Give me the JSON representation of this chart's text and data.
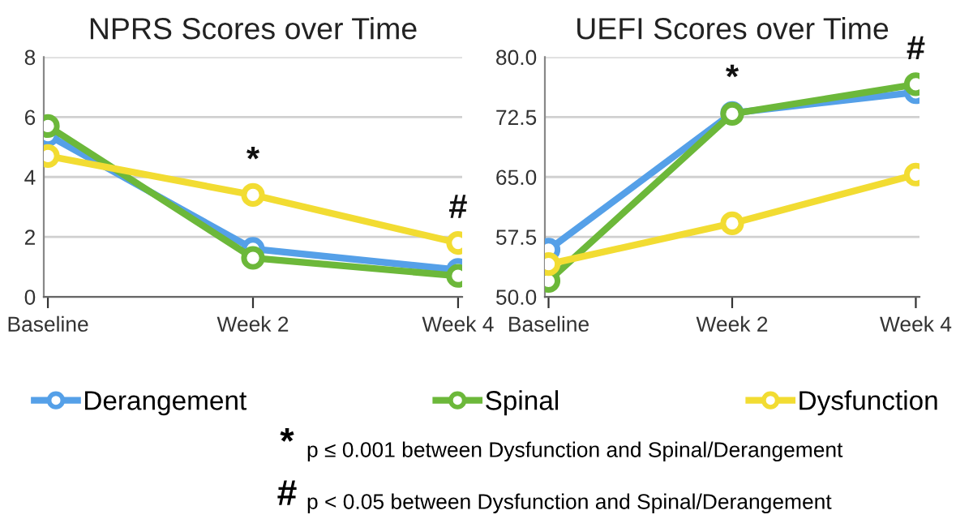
{
  "chart_data": [
    {
      "type": "line",
      "title": "NPRS Scores over Time",
      "categories": [
        "Baseline",
        "Week 2",
        "Week 4"
      ],
      "series": [
        {
          "name": "Derangement",
          "color": "#55a0e8",
          "values": [
            5.4,
            1.6,
            0.9
          ]
        },
        {
          "name": "Spinal",
          "color": "#6cb83a",
          "values": [
            5.7,
            1.3,
            0.7
          ]
        },
        {
          "name": "Dysfunction",
          "color": "#f2dc32",
          "values": [
            4.7,
            3.4,
            1.8
          ]
        }
      ],
      "ylim": [
        0,
        8
      ],
      "yticks": [
        0,
        2,
        4,
        6,
        8
      ],
      "grid": "y",
      "marker": "circle",
      "line_style": "solid",
      "legend": "bottom",
      "annotations": [
        "*",
        "#"
      ]
    },
    {
      "type": "line",
      "title": "UEFI Scores over Time",
      "categories": [
        "Baseline",
        "Week 2",
        "Week 4"
      ],
      "series": [
        {
          "name": "Derangement",
          "color": "#55a0e8",
          "values": [
            55.9,
            73.0,
            75.6
          ]
        },
        {
          "name": "Spinal",
          "color": "#6cb83a",
          "values": [
            52.0,
            72.9,
            76.6
          ]
        },
        {
          "name": "Dysfunction",
          "color": "#f2dc32",
          "values": [
            54.1,
            59.2,
            65.3
          ]
        }
      ],
      "ylim": [
        50,
        80
      ],
      "yticks": [
        {
          "value": 50,
          "label": "50.0"
        },
        {
          "value": 57.5,
          "label": "57.5"
        },
        {
          "value": 65,
          "label": "65.0"
        },
        {
          "value": 72.5,
          "label": "72.5"
        },
        {
          "value": 80,
          "label": "80.0"
        }
      ],
      "grid": "y",
      "marker": "circle",
      "line_style": "solid",
      "annotations": [
        "*",
        "#",
        "*",
        "p ≤ 0.001 between Dysfunction and Spinal/Derangement",
        "#",
        "p < 0.05 between Dysfunction and Spinal/Derangement"
      ]
    }
  ]
}
